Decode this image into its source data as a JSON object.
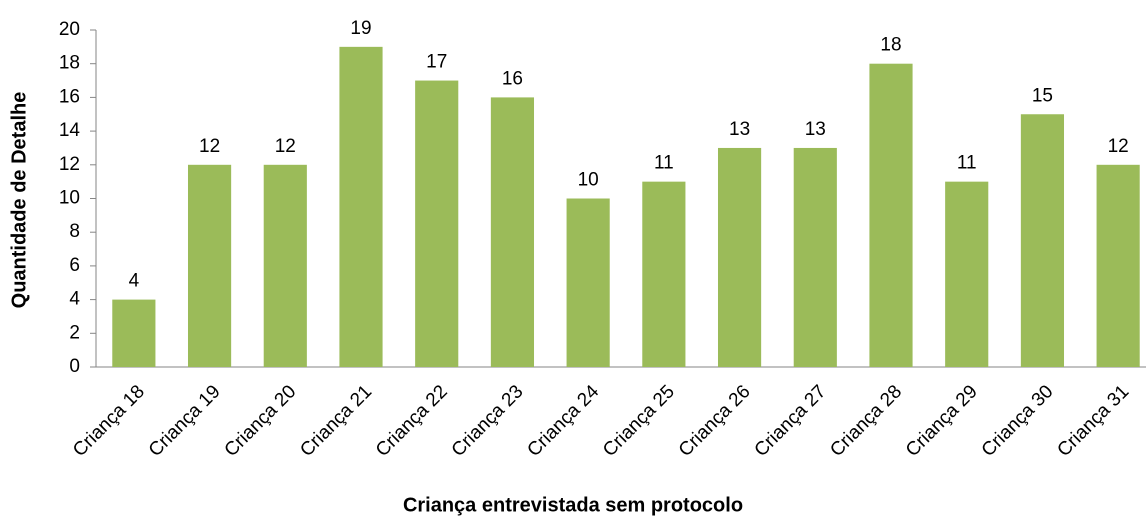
{
  "chart_data": {
    "type": "bar",
    "categories": [
      "Criança 18",
      "Criança 19",
      "Criança 20",
      "Criança 21",
      "Criança 22",
      "Criança 23",
      "Criança 24",
      "Criança 25",
      "Criança 26",
      "Criança 27",
      "Criança 28",
      "Criança 29",
      "Criança 30",
      "Criança 31"
    ],
    "values": [
      4,
      12,
      12,
      19,
      17,
      16,
      10,
      11,
      13,
      13,
      18,
      11,
      15,
      12
    ],
    "color": "#9bbb59",
    "xlabel": "Criança entrevistada sem protocolo",
    "ylabel": "Quantidade de Detalhe",
    "ylim": [
      0,
      20
    ],
    "yticks": [
      0,
      2,
      4,
      6,
      8,
      10,
      12,
      14,
      16,
      18,
      20
    ],
    "grid": false
  }
}
